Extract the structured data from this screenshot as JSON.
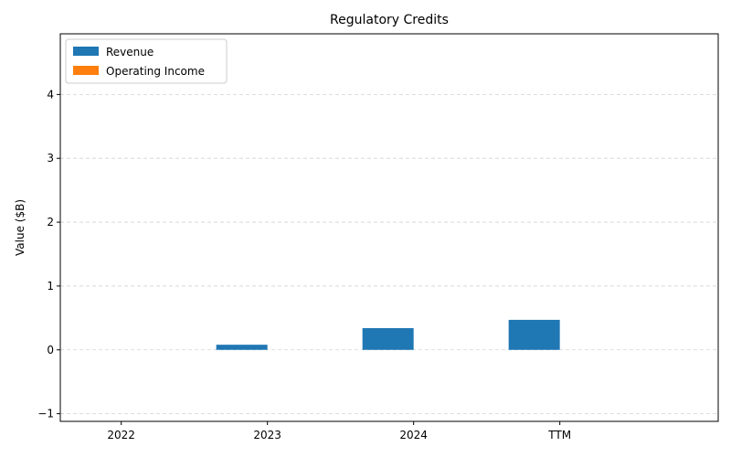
{
  "chart_data": {
    "type": "bar",
    "title": "Regulatory Credits",
    "xlabel": "",
    "ylabel": "Value ($B)",
    "categories": [
      "2022",
      "2023",
      "2024",
      "TTM"
    ],
    "series": [
      {
        "name": "Revenue",
        "color": "#1f77b4",
        "values": [
          0.0,
          0.08,
          0.34,
          0.47
        ]
      },
      {
        "name": "Operating Income",
        "color": "#ff7f0e",
        "values": [
          0.0,
          0.0,
          0.0,
          0.0
        ]
      }
    ],
    "ylim": [
      -1.12,
      4.95
    ],
    "yticks": [
      -1,
      0,
      1,
      2,
      3,
      4
    ],
    "grid": true,
    "legend_position": "top-left"
  }
}
